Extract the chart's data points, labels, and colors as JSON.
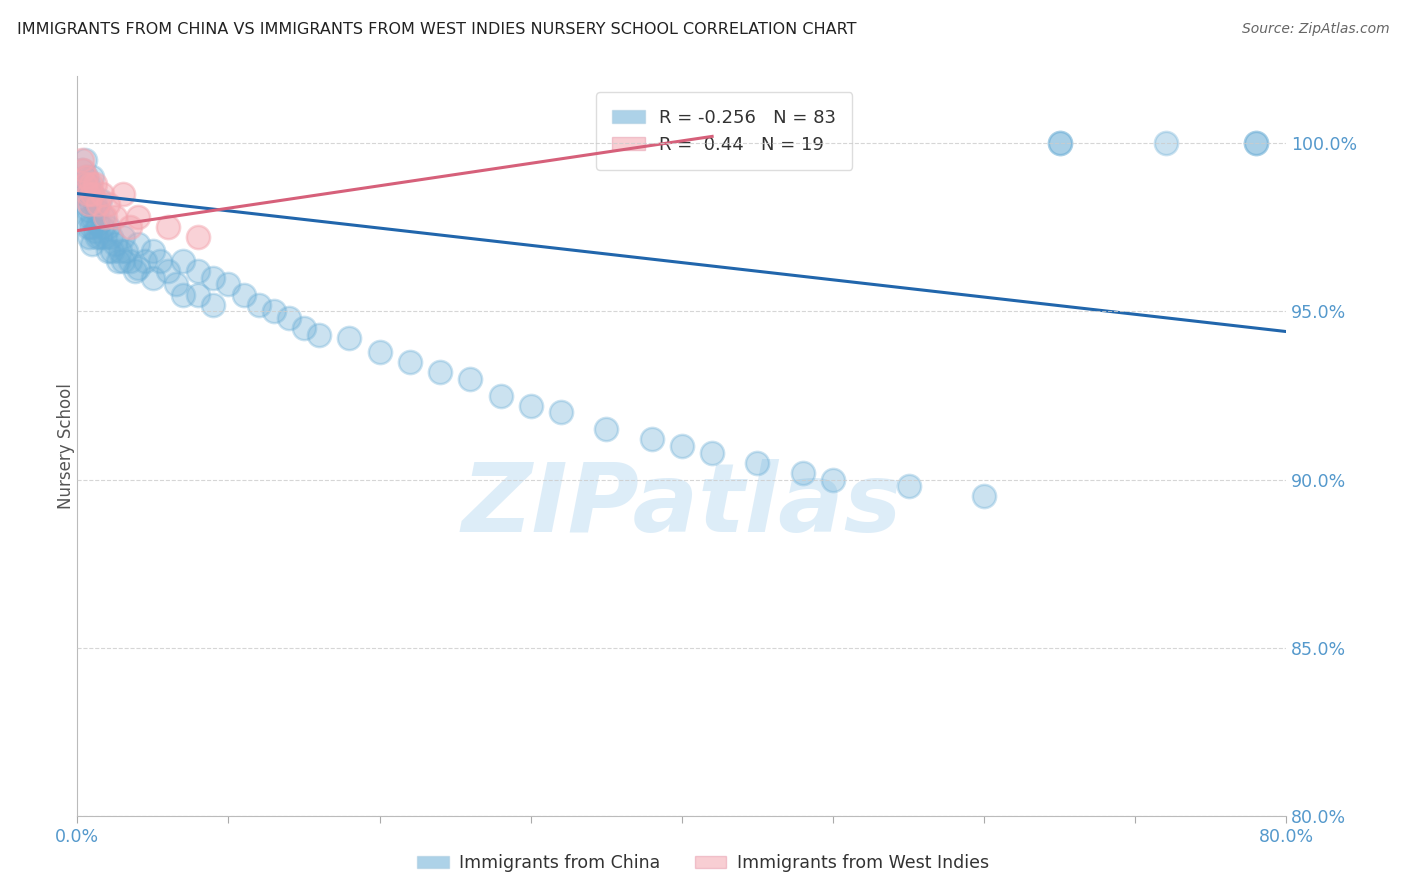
{
  "title": "IMMIGRANTS FROM CHINA VS IMMIGRANTS FROM WEST INDIES NURSERY SCHOOL CORRELATION CHART",
  "source": "Source: ZipAtlas.com",
  "ylabel": "Nursery School",
  "y_ticks": [
    80.0,
    85.0,
    90.0,
    95.0,
    100.0
  ],
  "y_tick_labels": [
    "80.0%",
    "85.0%",
    "90.0%",
    "95.0%",
    "100.0%"
  ],
  "xlim": [
    0.0,
    0.8
  ],
  "ylim": [
    80.0,
    102.0
  ],
  "china_R": -0.256,
  "china_N": 83,
  "wi_R": 0.44,
  "wi_N": 19,
  "china_color": "#6baed6",
  "wi_color": "#f4a7b0",
  "china_line_color": "#2166ac",
  "wi_line_color": "#d6607a",
  "legend_label_china": "Immigrants from China",
  "legend_label_wi": "Immigrants from West Indies",
  "watermark_text": "ZIPatlas",
  "background_color": "#ffffff",
  "grid_color": "#cccccc",
  "tick_color": "#5599cc",
  "china_line_x0": 0.0,
  "china_line_y0": 98.5,
  "china_line_x1": 0.8,
  "china_line_y1": 94.4,
  "wi_line_x0": 0.0,
  "wi_line_y0": 97.4,
  "wi_line_x1": 0.42,
  "wi_line_y1": 100.2,
  "china_pts_x": [
    0.003,
    0.004,
    0.005,
    0.005,
    0.006,
    0.006,
    0.007,
    0.007,
    0.007,
    0.008,
    0.008,
    0.008,
    0.009,
    0.009,
    0.01,
    0.01,
    0.01,
    0.01,
    0.012,
    0.012,
    0.013,
    0.013,
    0.014,
    0.015,
    0.015,
    0.016,
    0.017,
    0.018,
    0.02,
    0.02,
    0.022,
    0.023,
    0.025,
    0.027,
    0.028,
    0.03,
    0.03,
    0.032,
    0.035,
    0.038,
    0.04,
    0.04,
    0.045,
    0.05,
    0.05,
    0.055,
    0.06,
    0.065,
    0.07,
    0.07,
    0.08,
    0.08,
    0.09,
    0.09,
    0.1,
    0.11,
    0.12,
    0.13,
    0.14,
    0.15,
    0.16,
    0.18,
    0.2,
    0.22,
    0.24,
    0.26,
    0.28,
    0.3,
    0.32,
    0.35,
    0.38,
    0.4,
    0.42,
    0.45,
    0.48,
    0.5,
    0.55,
    0.6,
    0.65,
    0.65,
    0.72,
    0.78,
    0.78
  ],
  "china_pts_y": [
    99.2,
    98.8,
    99.5,
    98.5,
    99.0,
    98.2,
    98.8,
    98.0,
    97.5,
    98.5,
    97.8,
    97.2,
    98.2,
    97.5,
    99.0,
    98.5,
    97.8,
    97.0,
    98.2,
    97.4,
    98.0,
    97.2,
    97.6,
    98.3,
    97.2,
    97.5,
    97.8,
    97.2,
    97.5,
    96.8,
    97.2,
    96.8,
    97.0,
    96.5,
    96.8,
    97.2,
    96.5,
    96.8,
    96.5,
    96.2,
    97.0,
    96.3,
    96.5,
    96.8,
    96.0,
    96.5,
    96.2,
    95.8,
    96.5,
    95.5,
    96.2,
    95.5,
    96.0,
    95.2,
    95.8,
    95.5,
    95.2,
    95.0,
    94.8,
    94.5,
    94.3,
    94.2,
    93.8,
    93.5,
    93.2,
    93.0,
    92.5,
    92.2,
    92.0,
    91.5,
    91.2,
    91.0,
    90.8,
    90.5,
    90.2,
    90.0,
    89.8,
    89.5,
    100.0,
    100.0,
    100.0,
    100.0,
    100.0
  ],
  "wi_pts_x": [
    0.003,
    0.004,
    0.005,
    0.006,
    0.007,
    0.008,
    0.009,
    0.01,
    0.012,
    0.014,
    0.016,
    0.018,
    0.02,
    0.025,
    0.03,
    0.035,
    0.04,
    0.06,
    0.08
  ],
  "wi_pts_y": [
    99.5,
    99.2,
    98.8,
    99.0,
    98.5,
    98.2,
    98.8,
    98.5,
    98.8,
    98.2,
    98.5,
    97.8,
    98.2,
    97.8,
    98.5,
    97.5,
    97.8,
    97.5,
    97.2
  ]
}
